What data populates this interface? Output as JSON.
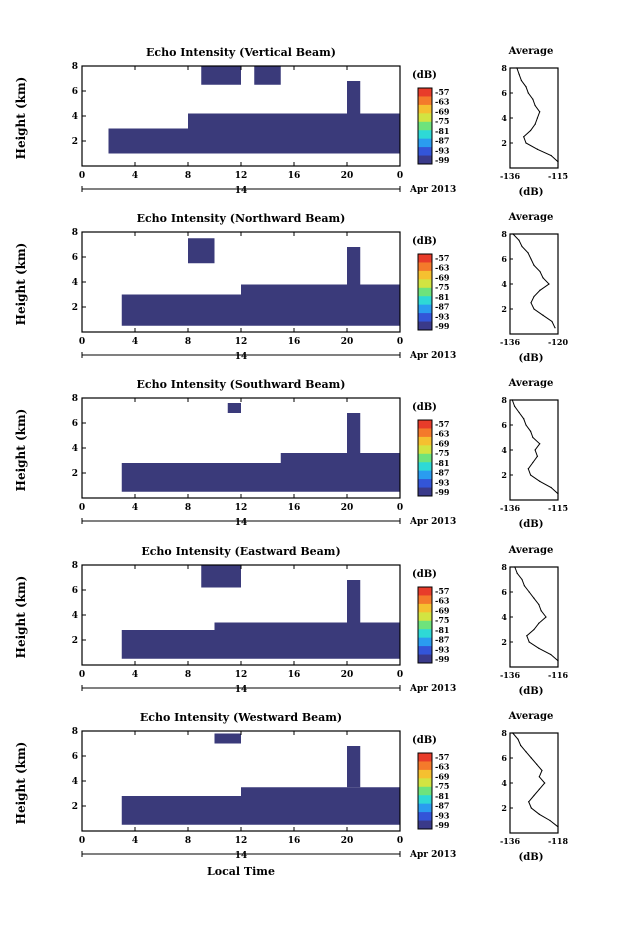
{
  "x_axis_label": "Local Time",
  "chart_data": [
    {
      "type": "heatmap",
      "title": "Echo Intensity (Vertical Beam)",
      "ylabel": "Height (km)",
      "x_ticks": [
        "0",
        "4",
        "8",
        "12",
        "16",
        "20",
        "0"
      ],
      "y_ticks": [
        "2",
        "4",
        "6",
        "8"
      ],
      "x_range": [
        0,
        24
      ],
      "y_range": [
        0,
        8
      ],
      "day_label": "14",
      "date_label": "Apr 2013",
      "colorbar": {
        "title": "(dB)",
        "ticks": [
          "-57",
          "-63",
          "-69",
          "-75",
          "-81",
          "-87",
          "-93",
          "-99"
        ]
      },
      "layers": [
        {
          "x0": 2,
          "x1": 24,
          "y0": 1,
          "y1": 3
        },
        {
          "x0": 8,
          "x1": 24,
          "y0": 3,
          "y1": 4.2
        },
        {
          "x0": 9,
          "x1": 12,
          "y0": 6.5,
          "y1": 8
        },
        {
          "x0": 13,
          "x1": 15,
          "y0": 6.5,
          "y1": 8
        },
        {
          "x0": 20,
          "x1": 21,
          "y0": 3.8,
          "y1": 6.8
        }
      ],
      "average": {
        "title": "Average",
        "xlabel": "(dB)",
        "x_ticks": [
          "-136",
          "-115"
        ],
        "y_ticks": [
          "2",
          "4",
          "6",
          "8"
        ],
        "y": [
          0.5,
          1,
          1.5,
          2,
          2.5,
          3,
          3.5,
          4,
          4.5,
          5,
          5.5,
          6,
          6.5,
          7,
          7.5,
          8
        ],
        "x": [
          -115,
          -118,
          -124,
          -129,
          -130,
          -127,
          -125,
          -124,
          -123,
          -125,
          -126,
          -128,
          -129,
          -131,
          -132,
          -133
        ]
      }
    },
    {
      "type": "heatmap",
      "title": "Echo Intensity (Northward Beam)",
      "ylabel": "Height (km)",
      "x_ticks": [
        "0",
        "4",
        "8",
        "12",
        "16",
        "20",
        "0"
      ],
      "y_ticks": [
        "2",
        "4",
        "6",
        "8"
      ],
      "x_range": [
        0,
        24
      ],
      "y_range": [
        0,
        8
      ],
      "day_label": "14",
      "date_label": "Apr 2013",
      "colorbar": {
        "title": "(dB)",
        "ticks": [
          "-57",
          "-63",
          "-69",
          "-75",
          "-81",
          "-87",
          "-93",
          "-99"
        ]
      },
      "layers": [
        {
          "x0": 3,
          "x1": 24,
          "y0": 0.5,
          "y1": 3
        },
        {
          "x0": 12,
          "x1": 24,
          "y0": 3,
          "y1": 3.8
        },
        {
          "x0": 20,
          "x1": 21,
          "y0": 3.8,
          "y1": 6.8
        },
        {
          "x0": 8,
          "x1": 10,
          "y0": 5.5,
          "y1": 7.5
        }
      ],
      "average": {
        "title": "Average",
        "xlabel": "(dB)",
        "x_ticks": [
          "-136",
          "-120"
        ],
        "y_ticks": [
          "2",
          "4",
          "6",
          "8"
        ],
        "y": [
          0.5,
          1,
          1.5,
          2,
          2.5,
          3,
          3.5,
          4,
          4.5,
          5,
          5.5,
          6,
          6.5,
          7,
          7.5,
          8
        ],
        "x": [
          -121,
          -122,
          -125,
          -128,
          -129,
          -128,
          -126,
          -123,
          -125,
          -126,
          -128,
          -129,
          -130,
          -132,
          -133,
          -135
        ]
      }
    },
    {
      "type": "heatmap",
      "title": "Echo Intensity (Southward Beam)",
      "ylabel": "Height (km)",
      "x_ticks": [
        "0",
        "4",
        "8",
        "12",
        "16",
        "20",
        "0"
      ],
      "y_ticks": [
        "2",
        "4",
        "6",
        "8"
      ],
      "x_range": [
        0,
        24
      ],
      "y_range": [
        0,
        8
      ],
      "day_label": "14",
      "date_label": "Apr 2013",
      "colorbar": {
        "title": "(dB)",
        "ticks": [
          "-57",
          "-63",
          "-69",
          "-75",
          "-81",
          "-87",
          "-93",
          "-99"
        ]
      },
      "layers": [
        {
          "x0": 3,
          "x1": 24,
          "y0": 0.5,
          "y1": 2.8
        },
        {
          "x0": 15,
          "x1": 24,
          "y0": 2.8,
          "y1": 3.6
        },
        {
          "x0": 20,
          "x1": 21,
          "y0": 3.6,
          "y1": 6.8
        },
        {
          "x0": 11,
          "x1": 12,
          "y0": 6.8,
          "y1": 7.6
        }
      ],
      "average": {
        "title": "Average",
        "xlabel": "(dB)",
        "x_ticks": [
          "-136",
          "-115"
        ],
        "y_ticks": [
          "2",
          "4",
          "6",
          "8"
        ],
        "y": [
          0.5,
          1,
          1.5,
          2,
          2.5,
          3,
          3.5,
          4,
          4.5,
          5,
          5.5,
          6,
          6.5,
          7,
          7.5,
          8
        ],
        "x": [
          -115,
          -118,
          -123,
          -127,
          -128,
          -126,
          -124,
          -125,
          -123,
          -126,
          -127,
          -129,
          -130,
          -132,
          -134,
          -135
        ]
      }
    },
    {
      "type": "heatmap",
      "title": "Echo Intensity (Eastward Beam)",
      "ylabel": "Height (km)",
      "x_ticks": [
        "0",
        "4",
        "8",
        "12",
        "16",
        "20",
        "0"
      ],
      "y_ticks": [
        "2",
        "4",
        "6",
        "8"
      ],
      "x_range": [
        0,
        24
      ],
      "y_range": [
        0,
        8
      ],
      "day_label": "14",
      "date_label": "Apr 2013",
      "colorbar": {
        "title": "(dB)",
        "ticks": [
          "-57",
          "-63",
          "-69",
          "-75",
          "-81",
          "-87",
          "-93",
          "-99"
        ]
      },
      "layers": [
        {
          "x0": 3,
          "x1": 24,
          "y0": 0.5,
          "y1": 2.8
        },
        {
          "x0": 10,
          "x1": 24,
          "y0": 2.8,
          "y1": 3.4
        },
        {
          "x0": 20,
          "x1": 21,
          "y0": 3.4,
          "y1": 6.8
        },
        {
          "x0": 9,
          "x1": 12,
          "y0": 6.2,
          "y1": 8
        }
      ],
      "average": {
        "title": "Average",
        "xlabel": "(dB)",
        "x_ticks": [
          "-136",
          "-116"
        ],
        "y_ticks": [
          "2",
          "4",
          "6",
          "8"
        ],
        "y": [
          0.5,
          1,
          1.5,
          2,
          2.5,
          3,
          3.5,
          4,
          4.5,
          5,
          5.5,
          6,
          6.5,
          7,
          7.5,
          8
        ],
        "x": [
          -116,
          -119,
          -124,
          -128,
          -129,
          -126,
          -124,
          -121,
          -123,
          -124,
          -126,
          -128,
          -130,
          -131,
          -133,
          -134
        ]
      }
    },
    {
      "type": "heatmap",
      "title": "Echo Intensity (Westward Beam)",
      "ylabel": "Height (km)",
      "x_ticks": [
        "0",
        "4",
        "8",
        "12",
        "16",
        "20",
        "0"
      ],
      "y_ticks": [
        "2",
        "4",
        "6",
        "8"
      ],
      "x_range": [
        0,
        24
      ],
      "y_range": [
        0,
        8
      ],
      "day_label": "14",
      "date_label": "Apr 2013",
      "colorbar": {
        "title": "(dB)",
        "ticks": [
          "-57",
          "-63",
          "-69",
          "-75",
          "-81",
          "-87",
          "-93",
          "-99"
        ]
      },
      "layers": [
        {
          "x0": 3,
          "x1": 24,
          "y0": 0.5,
          "y1": 2.8
        },
        {
          "x0": 12,
          "x1": 24,
          "y0": 2.8,
          "y1": 3.5
        },
        {
          "x0": 20,
          "x1": 21,
          "y0": 3.5,
          "y1": 6.8
        },
        {
          "x0": 10,
          "x1": 12,
          "y0": 7,
          "y1": 7.8
        }
      ],
      "average": {
        "title": "Average",
        "xlabel": "(dB)",
        "x_ticks": [
          "-136",
          "-118"
        ],
        "y_ticks": [
          "2",
          "4",
          "6",
          "8"
        ],
        "y": [
          0.5,
          1,
          1.5,
          2,
          2.5,
          3,
          3.5,
          4,
          4.5,
          5,
          5.5,
          6,
          6.5,
          7,
          7.5,
          8
        ],
        "x": [
          -118,
          -121,
          -125,
          -128,
          -129,
          -127,
          -125,
          -123,
          -125,
          -124,
          -126,
          -128,
          -130,
          -132,
          -133,
          -135
        ]
      }
    }
  ]
}
